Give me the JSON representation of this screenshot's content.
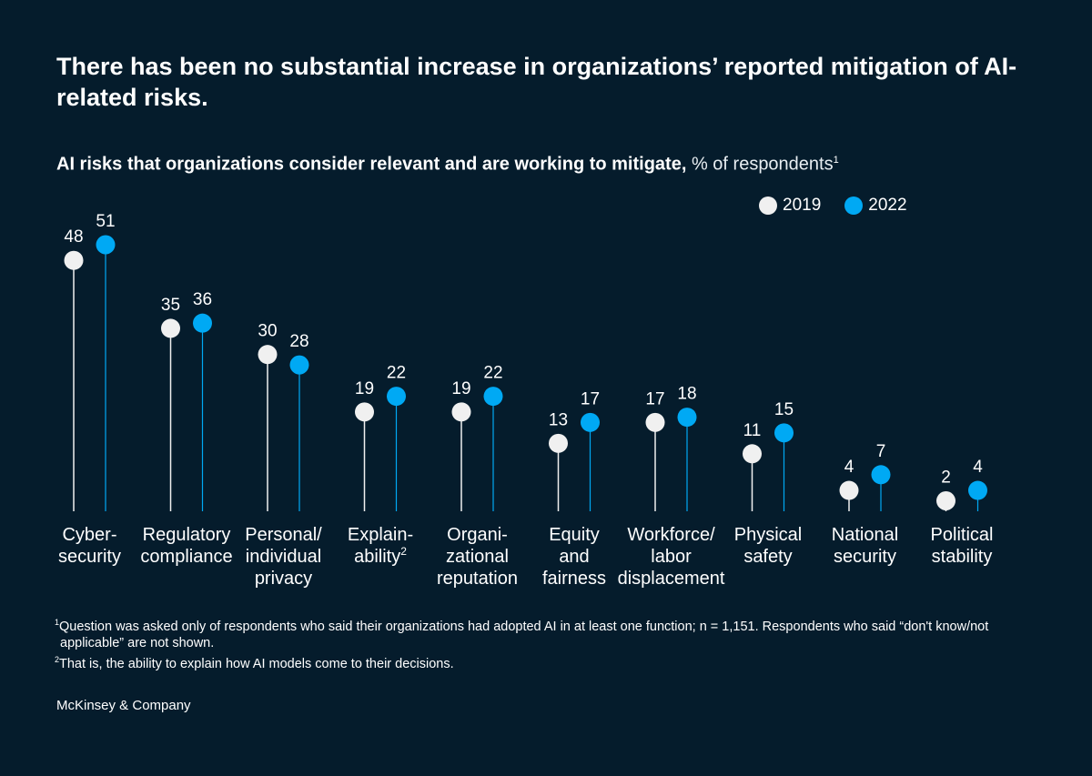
{
  "title": "There has been no substantial increase in organizations’ reported mitigation of AI-related risks.",
  "subtitle": {
    "bold": "AI risks that organizations consider relevant and are working to mitigate,",
    "light": "% of respondents",
    "sup": "1"
  },
  "chart_data": {
    "type": "lollipop",
    "categories": [
      [
        "Cyber-",
        "security"
      ],
      [
        "Regulatory",
        "compliance"
      ],
      [
        "Personal/",
        "individual",
        "privacy"
      ],
      [
        "Explain-",
        "ability²"
      ],
      [
        "Organi-",
        "zational",
        "reputation"
      ],
      [
        "Equity",
        "and",
        "fairness"
      ],
      [
        "Workforce/",
        "labor",
        "displacement"
      ],
      [
        "Physical",
        "safety"
      ],
      [
        "National",
        "security"
      ],
      [
        "Political",
        "stability"
      ]
    ],
    "series": [
      {
        "name": "2019",
        "color": "#f0f0f0",
        "values": [
          48,
          35,
          30,
          19,
          19,
          13,
          17,
          11,
          4,
          2
        ]
      },
      {
        "name": "2022",
        "color": "#00a9f4",
        "values": [
          51,
          36,
          28,
          22,
          22,
          17,
          18,
          15,
          7,
          4
        ]
      }
    ],
    "ylim": [
      0,
      51
    ],
    "legend_position": "top-right",
    "grid": false
  },
  "legend": [
    {
      "label": "2019",
      "color": "#f0f0f0"
    },
    {
      "label": "2022",
      "color": "#00a9f4"
    }
  ],
  "footnotes": {
    "fn1_sup": "1",
    "fn1": "Question was asked only of respondents who said their organizations had adopted AI in at least one function; n = 1,151. Respondents who said “don't know/not applicable” are not shown.",
    "fn2_sup": "2",
    "fn2": "That is, the ability to explain how AI models come to their decisions."
  },
  "brand": "McKinsey & Company"
}
